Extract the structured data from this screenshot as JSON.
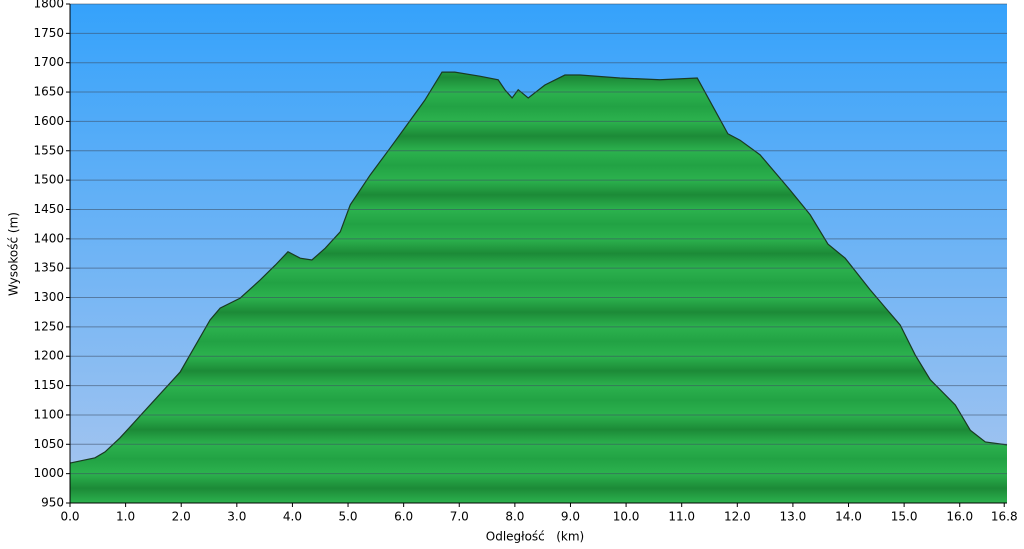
{
  "chart_data": {
    "type": "area",
    "x_label": "Odległość   (km)",
    "y_label": "Wysokość (m)",
    "x": [
      0,
      0.45,
      0.63,
      0.9,
      1.44,
      1.98,
      2.52,
      2.7,
      3.06,
      3.42,
      3.69,
      3.92,
      4.14,
      4.35,
      4.59,
      4.86,
      5.04,
      5.4,
      5.76,
      6.12,
      6.38,
      6.69,
      6.92,
      7.37,
      7.7,
      7.82,
      7.95,
      8.06,
      8.24,
      8.54,
      8.9,
      9.17,
      9.89,
      10.61,
      11.28,
      11.5,
      11.83,
      12.05,
      12.41,
      12.95,
      13.31,
      13.63,
      13.94,
      14.39,
      14.93,
      15.2,
      15.47,
      15.92,
      16.19,
      16.46,
      16.85
    ],
    "y": [
      1018,
      1027,
      1037,
      1061,
      1117,
      1173,
      1262,
      1282,
      1299,
      1330,
      1355,
      1378,
      1367,
      1364,
      1384,
      1412,
      1458,
      1509,
      1555,
      1602,
      1636,
      1684,
      1684,
      1677,
      1671,
      1654,
      1640,
      1654,
      1640,
      1662,
      1679,
      1679,
      1674,
      1671,
      1674,
      1636,
      1579,
      1568,
      1543,
      1483,
      1441,
      1391,
      1367,
      1313,
      1253,
      1202,
      1160,
      1117,
      1074,
      1054,
      1049
    ],
    "color": "#22a244",
    "xlim": [
      0,
      16.85
    ],
    "ylim": [
      950,
      1800
    ],
    "xticks": [
      {
        "value": 0,
        "label": "0.0"
      },
      {
        "value": 1,
        "label": "1.0"
      },
      {
        "value": 2,
        "label": "2.0"
      },
      {
        "value": 3,
        "label": "3.0"
      },
      {
        "value": 4,
        "label": "4.0"
      },
      {
        "value": 5,
        "label": "5.0"
      },
      {
        "value": 6,
        "label": "6.0"
      },
      {
        "value": 7,
        "label": "7.0"
      },
      {
        "value": 8,
        "label": "8.0"
      },
      {
        "value": 9,
        "label": "9.0"
      },
      {
        "value": 10,
        "label": "10.0"
      },
      {
        "value": 11,
        "label": "11.0"
      },
      {
        "value": 12,
        "label": "12.0"
      },
      {
        "value": 13,
        "label": "13.0"
      },
      {
        "value": 14,
        "label": "14.0"
      },
      {
        "value": 15,
        "label": "15.0"
      },
      {
        "value": 16,
        "label": "16.0"
      },
      {
        "value": 16.8,
        "label": "16.8"
      }
    ],
    "yticks": [
      950,
      1000,
      1050,
      1100,
      1150,
      1200,
      1250,
      1300,
      1350,
      1400,
      1450,
      1500,
      1550,
      1600,
      1650,
      1700,
      1750,
      1800
    ],
    "grid": true
  }
}
